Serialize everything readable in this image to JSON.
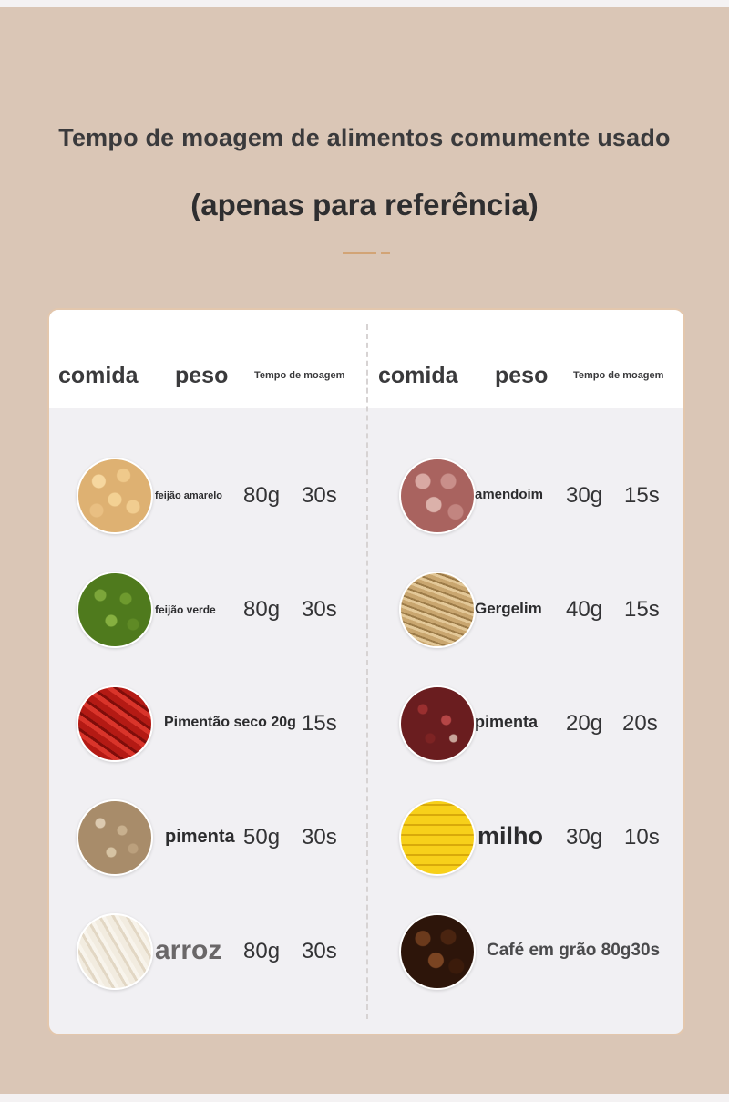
{
  "header": {
    "title": "Tempo de moagem de alimentos comumente usado",
    "subtitle": "(apenas para referência)"
  },
  "table": {
    "columns": {
      "food": "comida",
      "weight": "peso",
      "time": "Tempo de moagem"
    },
    "left": [
      {
        "name": "feijão amarelo",
        "weight": "80g",
        "time": "30s",
        "icon": "soybean-icon"
      },
      {
        "name": "feijão verde",
        "weight": "80g",
        "time": "30s",
        "icon": "mung-bean-icon"
      },
      {
        "name": "Pimentão seco 20g",
        "weight": "",
        "time": "15s",
        "icon": "dried-chili-icon"
      },
      {
        "name": "pimenta",
        "weight": "50g",
        "time": "30s",
        "icon": "peppercorn-icon"
      },
      {
        "name": "arroz",
        "weight": "80g",
        "time": "30s",
        "icon": "rice-icon"
      }
    ],
    "right": [
      {
        "name": "amendoim",
        "weight": "30g",
        "time": "15s",
        "icon": "peanut-icon"
      },
      {
        "name": "Gergelim",
        "weight": "40g",
        "time": "15s",
        "icon": "sesame-icon"
      },
      {
        "name": "pimenta",
        "weight": "20g",
        "time": "20s",
        "icon": "sichuan-pepper-icon"
      },
      {
        "name": "milho",
        "weight": "30g",
        "time": "10s",
        "icon": "corn-icon"
      },
      {
        "name": "Café em grão 80g30s",
        "weight": "",
        "time": "",
        "icon": "coffee-bean-icon"
      }
    ]
  },
  "colors": {
    "background": "#dac6b6",
    "card": "#f1f0f3",
    "accent": "#d2a476",
    "text": "#2c2c2e"
  }
}
